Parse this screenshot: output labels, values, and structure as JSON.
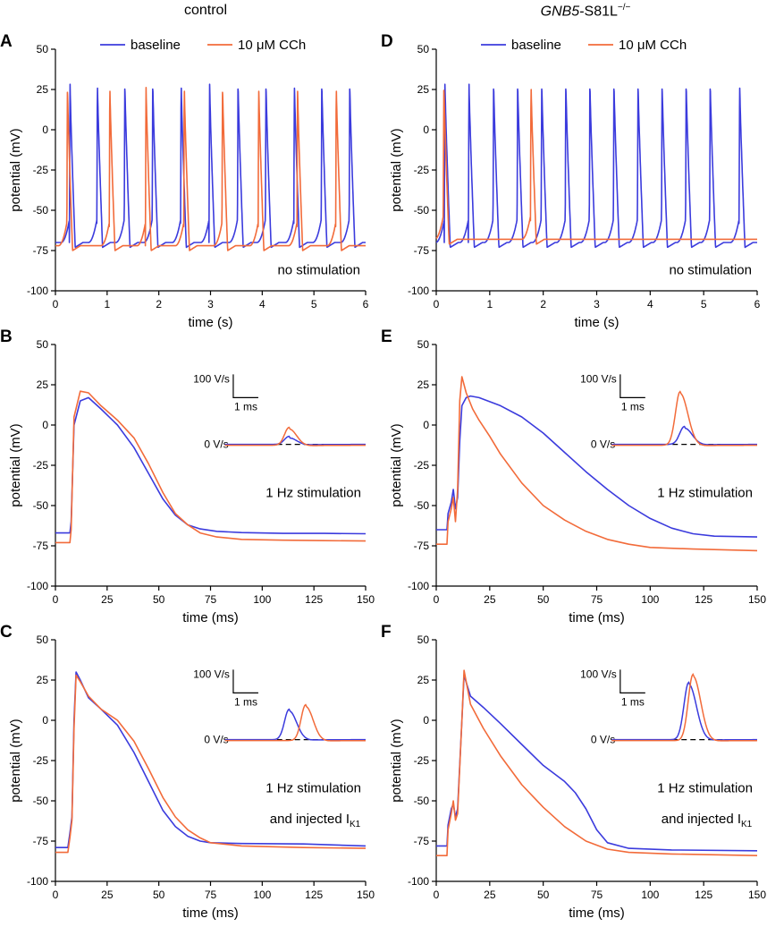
{
  "column_titles": {
    "left": "control",
    "right_gene": "GNB5",
    "right_mutation": "-S81L",
    "right_sup": "−/−"
  },
  "colors": {
    "baseline": "#3b3bdd",
    "cch": "#f26b3a"
  },
  "legend": {
    "baseline": "baseline",
    "cch": "10 μM CCh"
  },
  "inset_labels": {
    "scale": "100 V/s",
    "time": "1 ms",
    "zero": "0 V/s"
  },
  "chart_data": [
    {
      "panel": "A",
      "type": "line",
      "kind": "train",
      "xlabel": "time (s)",
      "ylabel": "potential (mV)",
      "xlim": [
        0,
        6
      ],
      "ylim": [
        -100,
        50
      ],
      "xticks": [
        0,
        1,
        2,
        3,
        4,
        5,
        6
      ],
      "yticks": [
        -100,
        -75,
        -50,
        -25,
        0,
        25,
        50
      ],
      "annotation": [
        "no stimulation"
      ],
      "legend_position": "top",
      "series": [
        {
          "name": "baseline",
          "rest": -70,
          "peak": 30,
          "spike_times": [
            0.27,
            0.8,
            1.33,
            1.87,
            2.42,
            2.97,
            3.52,
            4.06,
            4.61,
            5.14,
            5.68
          ]
        },
        {
          "name": "10 μM CCh",
          "rest": -72,
          "peak": 28,
          "spike_times": [
            0.22,
            1.04,
            1.74,
            2.48,
            3.22,
            3.92,
            4.67,
            5.42
          ]
        }
      ]
    },
    {
      "panel": "D",
      "type": "line",
      "kind": "train",
      "xlabel": "time (s)",
      "ylabel": "potential (mV)",
      "xlim": [
        0,
        6
      ],
      "ylim": [
        -100,
        50
      ],
      "xticks": [
        0,
        1,
        2,
        3,
        4,
        5,
        6
      ],
      "yticks": [
        -100,
        -75,
        -50,
        -25,
        0,
        25,
        50
      ],
      "annotation": [
        "no stimulation"
      ],
      "legend_position": "top",
      "series": [
        {
          "name": "baseline",
          "rest": -70,
          "peak": 30,
          "spike_times": [
            0.15,
            0.6,
            1.06,
            1.51,
            1.96,
            2.41,
            2.86,
            3.31,
            3.76,
            4.21,
            4.66,
            5.11,
            5.66
          ]
        },
        {
          "name": "10 μM CCh",
          "rest": -68,
          "peak": 29,
          "spike_times": [
            0.13,
            1.76
          ]
        }
      ]
    },
    {
      "panel": "B",
      "type": "line",
      "kind": "ap",
      "xlabel": "time (ms)",
      "ylabel": "potential (mV)",
      "xlim": [
        0,
        150
      ],
      "ylim": [
        -100,
        50
      ],
      "xticks": [
        0,
        25,
        50,
        75,
        100,
        125,
        150
      ],
      "yticks": [
        -100,
        -75,
        -50,
        -25,
        0,
        25,
        50
      ],
      "annotation": [
        "1 Hz stimulation"
      ],
      "series": [
        {
          "name": "baseline",
          "x": [
            0,
            7,
            7.6,
            9,
            12,
            16,
            22,
            30,
            38,
            45,
            52,
            58,
            64,
            70,
            78,
            90,
            110,
            130,
            150
          ],
          "y": [
            -67,
            -67,
            -60,
            0,
            15,
            17,
            10,
            0,
            -14,
            -30,
            -46,
            -56,
            -62,
            -64.5,
            -66,
            -66.8,
            -67.3,
            -67.3,
            -67.5
          ]
        },
        {
          "name": "10 μM CCh",
          "x": [
            0,
            7,
            7.6,
            9,
            12,
            16,
            22,
            30,
            38,
            45,
            52,
            58,
            64,
            70,
            78,
            90,
            110,
            130,
            150
          ],
          "y": [
            -73,
            -73,
            -65,
            5,
            21,
            20,
            12,
            3,
            -8,
            -24,
            -42,
            -55,
            -62,
            -67,
            -69.5,
            -71,
            -71.5,
            -71.8,
            -72
          ]
        }
      ],
      "inset": {
        "t_peak": [
          113,
          113
        ],
        "heights": [
          9,
          20
        ]
      }
    },
    {
      "panel": "E",
      "type": "line",
      "kind": "ap",
      "xlabel": "time (ms)",
      "ylabel": "potential (mV)",
      "xlim": [
        0,
        150
      ],
      "ylim": [
        -100,
        50
      ],
      "xticks": [
        0,
        25,
        50,
        75,
        100,
        125,
        150
      ],
      "yticks": [
        -100,
        -75,
        -50,
        -25,
        0,
        25,
        50
      ],
      "annotation": [
        "1 Hz stimulation"
      ],
      "series": [
        {
          "name": "baseline",
          "x": [
            0,
            5,
            5.5,
            7,
            8,
            9,
            10,
            11,
            12,
            14,
            16,
            20,
            30,
            40,
            50,
            60,
            70,
            80,
            90,
            100,
            110,
            120,
            130,
            150
          ],
          "y": [
            -65,
            -65,
            -55,
            -48,
            -40,
            -52,
            -45,
            -10,
            12,
            17,
            18,
            17,
            12,
            5,
            -5,
            -17,
            -29,
            -40,
            -50,
            -58,
            -64,
            -67.5,
            -69,
            -69.5
          ]
        },
        {
          "name": "10 μM CCh",
          "x": [
            0,
            5,
            5.5,
            7,
            8,
            9,
            10,
            11,
            12,
            14,
            17,
            20,
            25,
            30,
            40,
            50,
            60,
            70,
            80,
            90,
            100,
            120,
            150
          ],
          "y": [
            -74,
            -74,
            -60,
            -52,
            -45,
            -60,
            -40,
            15,
            30,
            20,
            10,
            3,
            -7,
            -18,
            -36,
            -50,
            -59,
            -66,
            -71,
            -74,
            -76,
            -77,
            -78
          ]
        }
      ],
      "inset": {
        "t_peak": [
          116,
          114
        ],
        "heights": [
          20,
          60
        ]
      }
    },
    {
      "panel": "C",
      "type": "line",
      "kind": "ap",
      "xlabel": "time (ms)",
      "ylabel": "potential (mV)",
      "xlim": [
        0,
        150
      ],
      "ylim": [
        -100,
        50
      ],
      "xticks": [
        0,
        25,
        50,
        75,
        100,
        125,
        150
      ],
      "yticks": [
        -100,
        -75,
        -50,
        -25,
        0,
        25,
        50
      ],
      "annotation": [
        "1 Hz stimulation",
        "and injected I",
        "K1"
      ],
      "series": [
        {
          "name": "baseline",
          "x": [
            0,
            6,
            7,
            8,
            9,
            10,
            12,
            16,
            22,
            30,
            38,
            45,
            52,
            58,
            64,
            70,
            75,
            90,
            120,
            150
          ],
          "y": [
            -79,
            -79,
            -70,
            -60,
            0,
            30,
            25,
            14,
            7,
            -3,
            -20,
            -38,
            -56,
            -66,
            -72,
            -75,
            -76,
            -76.5,
            -76.8,
            -78
          ]
        },
        {
          "name": "10 μM CCh",
          "x": [
            0,
            6,
            7,
            8,
            9,
            10,
            12,
            16,
            22,
            30,
            38,
            45,
            52,
            58,
            64,
            70,
            75,
            90,
            120,
            150
          ],
          "y": [
            -82,
            -82,
            -73,
            -62,
            -5,
            28,
            24,
            15,
            7,
            0,
            -13,
            -30,
            -48,
            -60,
            -68,
            -73,
            -76,
            -78,
            -79,
            -79.5
          ]
        }
      ],
      "inset": {
        "t_peak": [
          113,
          121
        ],
        "heights": [
          34,
          40
        ]
      }
    },
    {
      "panel": "F",
      "type": "line",
      "kind": "ap",
      "xlabel": "time (ms)",
      "ylabel": "potential (mV)",
      "xlim": [
        0,
        150
      ],
      "ylim": [
        -100,
        50
      ],
      "xticks": [
        0,
        25,
        50,
        75,
        100,
        125,
        150
      ],
      "yticks": [
        -100,
        -75,
        -50,
        -25,
        0,
        25,
        50
      ],
      "annotation": [
        "1 Hz stimulation",
        "and injected I",
        "K1"
      ],
      "series": [
        {
          "name": "baseline",
          "x": [
            0,
            5,
            5.5,
            7,
            8,
            9,
            10,
            12,
            13,
            16,
            22,
            30,
            40,
            50,
            60,
            65,
            70,
            75,
            80,
            90,
            110,
            150
          ],
          "y": [
            -78,
            -78,
            -65,
            -55,
            -52,
            -60,
            -55,
            0,
            28,
            15,
            8,
            -2,
            -15,
            -28,
            -38,
            -45,
            -55,
            -68,
            -76,
            -79.5,
            -80.5,
            -81
          ]
        },
        {
          "name": "10 μM CCh",
          "x": [
            0,
            5,
            5.5,
            7,
            8,
            9,
            10,
            12,
            13,
            16,
            22,
            30,
            40,
            50,
            60,
            70,
            80,
            90,
            110,
            150
          ],
          "y": [
            -84,
            -84,
            -68,
            -58,
            -50,
            -62,
            -58,
            0,
            31,
            10,
            -5,
            -22,
            -40,
            -54,
            -66,
            -75,
            -80,
            -82,
            -83,
            -84
          ]
        }
      ],
      "inset": {
        "t_peak": [
          118,
          120
        ],
        "heights": [
          64,
          74
        ]
      }
    }
  ]
}
